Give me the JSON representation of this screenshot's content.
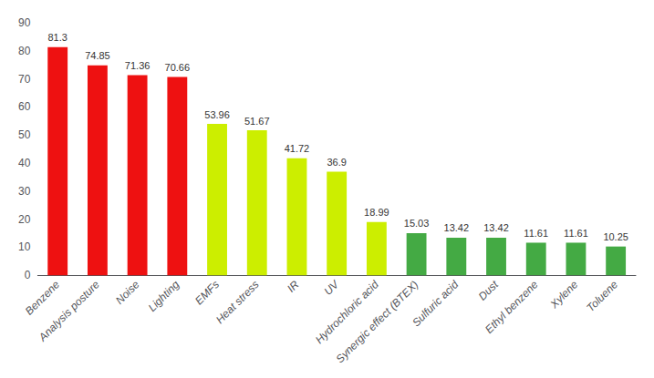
{
  "chart_data": {
    "type": "bar",
    "categories": [
      "Benzene",
      "Analysis posture",
      "Noise",
      "Lighting",
      "EMFs",
      "Heat stress",
      "IR",
      "UV",
      "Hydrochloric acid",
      "Synergic effect (BTEX)",
      "Sulfuric acid",
      "Dust",
      "Ethyl benzene",
      "Xylene",
      "Toluene"
    ],
    "values": [
      81.3,
      74.85,
      71.36,
      70.66,
      53.96,
      51.67,
      41.72,
      36.9,
      18.99,
      15.03,
      13.42,
      13.42,
      11.61,
      11.61,
      10.25
    ],
    "colors": [
      "#EE1111",
      "#EE1111",
      "#EE1111",
      "#EE1111",
      "#CCEE00",
      "#CCEE00",
      "#CCEE00",
      "#CCEE00",
      "#CCEE00",
      "#44AA44",
      "#44AA44",
      "#44AA44",
      "#44AA44",
      "#44AA44",
      "#44AA44"
    ],
    "ylim": [
      0,
      90
    ],
    "yticks": [
      0,
      10,
      20,
      30,
      40,
      50,
      60,
      70,
      80,
      90
    ],
    "grid": false,
    "data_labels": true
  }
}
